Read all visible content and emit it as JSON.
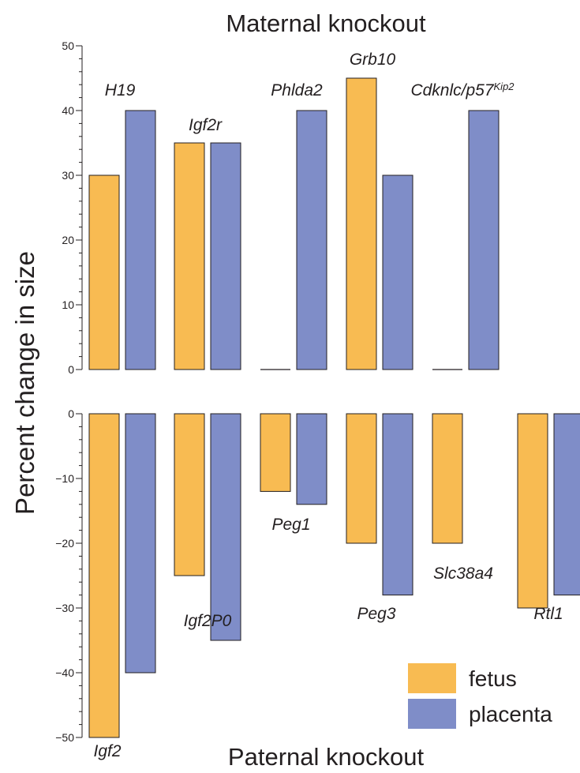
{
  "chart_data": [
    {
      "panel": "maternal",
      "type": "bar",
      "title": "Maternal knockout",
      "ylim": [
        0,
        50
      ],
      "yticks": [
        0,
        10,
        20,
        30,
        40,
        50
      ],
      "categories": [
        "H19",
        "Igf2r",
        "Phlda2",
        "Grb10",
        "Cdknlc/p57"
      ],
      "category_superscripts": [
        "",
        "",
        "",
        "",
        "Kip2"
      ],
      "series": [
        {
          "name": "fetus",
          "values": [
            30,
            35,
            0,
            45,
            0
          ]
        },
        {
          "name": "placenta",
          "values": [
            40,
            35,
            40,
            30,
            40
          ]
        }
      ]
    },
    {
      "panel": "paternal",
      "type": "bar",
      "title": "Paternal knockout",
      "ylim": [
        -50,
        0
      ],
      "yticks": [
        0,
        -10,
        -20,
        -30,
        -40,
        -50
      ],
      "categories": [
        "Igf2",
        "Igf2P0",
        "Peg1",
        "Peg3",
        "Slc38a4",
        "Rtl1"
      ],
      "series": [
        {
          "name": "fetus",
          "values": [
            -50,
            -25,
            -12,
            -20,
            -20,
            -30
          ]
        },
        {
          "name": "placenta",
          "values": [
            -40,
            -35,
            -14,
            -28,
            null,
            -28
          ]
        }
      ]
    }
  ],
  "ylabel": "Percent change in size",
  "legend": {
    "position": "bottom-right",
    "items": [
      {
        "label": "fetus",
        "color": "#f8bb52"
      },
      {
        "label": "placenta",
        "color": "#7f8dc8"
      }
    ]
  },
  "colors": {
    "fetus": "#f8bb52",
    "placenta": "#7f8dc8",
    "axis": "#231f20"
  }
}
